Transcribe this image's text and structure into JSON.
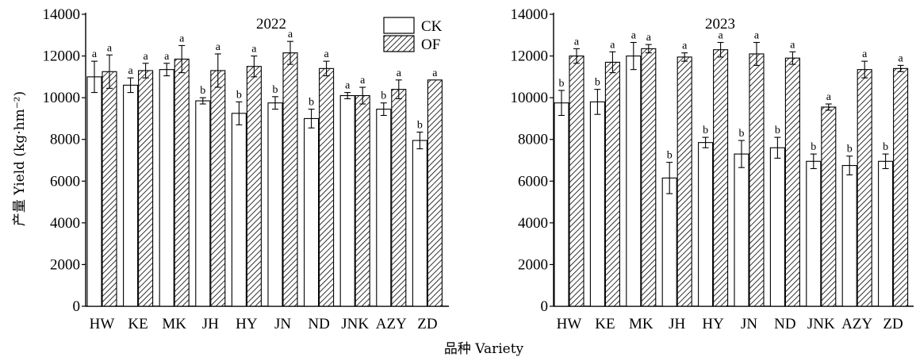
{
  "y_axis_label": "产量 Yield (kg·hm⁻²)",
  "x_axis_label": "品种 Variety",
  "colors": {
    "bar_stroke": "#000000",
    "ck_fill": "#ffffff",
    "hatch": "#000000"
  },
  "chart_data": [
    {
      "type": "bar",
      "title": "2022",
      "categories": [
        "HW",
        "KE",
        "MK",
        "JH",
        "HY",
        "JN",
        "ND",
        "JNK",
        "AZY",
        "ZD"
      ],
      "ylim": [
        0,
        14000
      ],
      "yticks": [
        0,
        2000,
        4000,
        6000,
        8000,
        10000,
        12000,
        14000
      ],
      "legend": {
        "placement": "top-right",
        "entries": [
          "CK",
          "OF"
        ]
      },
      "grid": false,
      "series": [
        {
          "name": "CK",
          "values": [
            11000,
            10600,
            11350,
            9850,
            9250,
            9750,
            9000,
            10100,
            9450,
            7950
          ],
          "errors": [
            750,
            350,
            300,
            150,
            550,
            300,
            450,
            150,
            300,
            400
          ],
          "letters": [
            "a",
            "a",
            "a",
            "b",
            "b",
            "b",
            "b",
            "a",
            "b",
            "b"
          ]
        },
        {
          "name": "OF",
          "values": [
            11250,
            11300,
            11850,
            11300,
            11500,
            12150,
            11400,
            10100,
            10400,
            10850
          ],
          "errors": [
            800,
            350,
            650,
            800,
            500,
            550,
            350,
            400,
            450,
            0
          ],
          "letters": [
            "a",
            "a",
            "a",
            "a",
            "a",
            "a",
            "a",
            "a",
            "a",
            "a"
          ]
        }
      ]
    },
    {
      "type": "bar",
      "title": "2023",
      "categories": [
        "HW",
        "KE",
        "MK",
        "JH",
        "HY",
        "JN",
        "ND",
        "JNK",
        "AZY",
        "ZD"
      ],
      "ylim": [
        0,
        14000
      ],
      "yticks": [
        0,
        2000,
        4000,
        6000,
        8000,
        10000,
        12000,
        14000
      ],
      "grid": false,
      "series": [
        {
          "name": "CK",
          "values": [
            9750,
            9800,
            12000,
            6150,
            7850,
            7300,
            7600,
            6950,
            6750,
            6950
          ],
          "errors": [
            600,
            600,
            650,
            750,
            250,
            650,
            500,
            350,
            450,
            350
          ],
          "letters": [
            "b",
            "b",
            "a",
            "b",
            "b",
            "b",
            "b",
            "b",
            "b",
            "b"
          ]
        },
        {
          "name": "OF",
          "values": [
            12000,
            11700,
            12350,
            11950,
            12300,
            12100,
            11900,
            9550,
            11350,
            11400
          ],
          "errors": [
            350,
            500,
            200,
            200,
            350,
            550,
            300,
            150,
            400,
            150
          ],
          "letters": [
            "a",
            "a",
            "a",
            "a",
            "a",
            "a",
            "a",
            "a",
            "a",
            "a"
          ]
        }
      ]
    }
  ]
}
